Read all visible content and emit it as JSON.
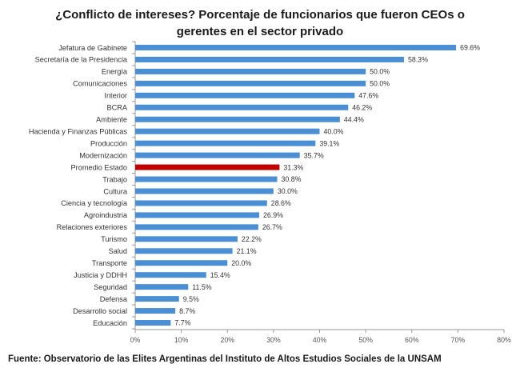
{
  "chart_data": {
    "type": "bar",
    "orientation": "horizontal",
    "title_lines": [
      "¿Conflicto de intereses? Porcentaje de funcionarios que fueron CEOs o",
      "gerentes en el sector privado"
    ],
    "categories": [
      "Jefatura de Gabinete",
      "Secretaría de la Presidencia",
      "Energía",
      "Comunicaciones",
      "Interior",
      "BCRA",
      "Ambiente",
      "Hacienda y Finanzas Públicas",
      "Producción",
      "Modernización",
      "Promedio Estado",
      "Trabajo",
      "Cultura",
      "Ciencia y tecnología",
      "Agroindustria",
      "Relaciones exteriores",
      "Turismo",
      "Salud",
      "Transporte",
      "Justicia y DDHH",
      "Seguridad",
      "Defensa",
      "Desarrollo social",
      "Educación"
    ],
    "values": [
      69.6,
      58.3,
      50.0,
      50.0,
      47.6,
      46.2,
      44.4,
      40.0,
      39.1,
      35.7,
      31.3,
      30.8,
      30.0,
      28.6,
      26.9,
      26.7,
      22.2,
      21.1,
      20.0,
      15.4,
      11.5,
      9.5,
      8.7,
      7.7
    ],
    "value_labels": [
      "69.6%",
      "58.3%",
      "50.0%",
      "50.0%",
      "47.6%",
      "46.2%",
      "44.4%",
      "40.0%",
      "39.1%",
      "35.7%",
      "31.3%",
      "30.8%",
      "30.0%",
      "28.6%",
      "26.9%",
      "26.7%",
      "22.2%",
      "21.1%",
      "20.0%",
      "15.4%",
      "11.5%",
      "9.5%",
      "8.7%",
      "7.7%"
    ],
    "highlight_category": "Promedio Estado",
    "xlim": [
      0,
      80
    ],
    "x_ticks": [
      0,
      10,
      20,
      30,
      40,
      50,
      60,
      70,
      80
    ],
    "x_tick_labels": [
      "0%",
      "10%",
      "20%",
      "30%",
      "40%",
      "50%",
      "60%",
      "70%",
      "80%"
    ],
    "colors": {
      "bar": "#4a8fd4",
      "highlight": "#c00000"
    },
    "source": "Fuente: Observatorio de las Elites Argentinas del Instituto de Altos Estudios Sociales de la UNSAM"
  }
}
